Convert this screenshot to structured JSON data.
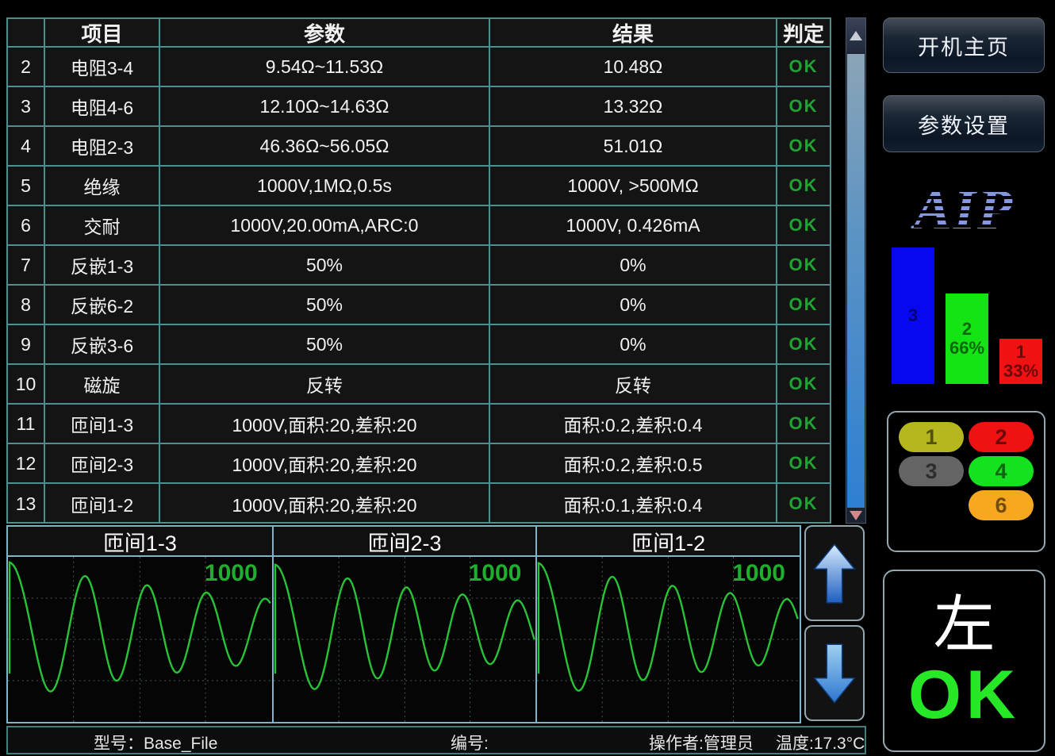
{
  "table": {
    "headers": {
      "no": "",
      "item": "项目",
      "param": "参数",
      "result": "结果",
      "judge": "判定"
    },
    "rows": [
      {
        "no": "2",
        "item": "电阻3-4",
        "param": "9.54Ω~11.53Ω",
        "result": "10.48Ω",
        "judge": "OK"
      },
      {
        "no": "3",
        "item": "电阻4-6",
        "param": "12.10Ω~14.63Ω",
        "result": "13.32Ω",
        "judge": "OK"
      },
      {
        "no": "4",
        "item": "电阻2-3",
        "param": "46.36Ω~56.05Ω",
        "result": "51.01Ω",
        "judge": "OK"
      },
      {
        "no": "5",
        "item": "绝缘",
        "param": "1000V,1MΩ,0.5s",
        "result": "1000V, >500MΩ",
        "judge": "OK"
      },
      {
        "no": "6",
        "item": "交耐",
        "param": "1000V,20.00mA,ARC:0",
        "result": "1000V, 0.426mA",
        "judge": "OK"
      },
      {
        "no": "7",
        "item": "反嵌1-3",
        "param": "50%",
        "result": "0%",
        "judge": "OK"
      },
      {
        "no": "8",
        "item": "反嵌6-2",
        "param": "50%",
        "result": "0%",
        "judge": "OK"
      },
      {
        "no": "9",
        "item": "反嵌3-6",
        "param": "50%",
        "result": "0%",
        "judge": "OK"
      },
      {
        "no": "10",
        "item": "磁旋",
        "param": "反转",
        "result": "反转",
        "judge": "OK"
      },
      {
        "no": "11",
        "item": "匝间1-3",
        "param": "1000V,面积:20,差积:20",
        "result": "面积:0.2,差积:0.4",
        "judge": "OK"
      },
      {
        "no": "12",
        "item": "匝间2-3",
        "param": "1000V,面积:20,差积:20",
        "result": "面积:0.2,差积:0.5",
        "judge": "OK"
      },
      {
        "no": "13",
        "item": "匝间1-2",
        "param": "1000V,面积:20,差积:20",
        "result": "面积:0.1,差积:0.4",
        "judge": "OK"
      }
    ]
  },
  "waveforms": {
    "panels": [
      {
        "title": "匝间1-3",
        "scale": "1000"
      },
      {
        "title": "匝间2-3",
        "scale": "1000"
      },
      {
        "title": "匝间1-2",
        "scale": "1000"
      }
    ]
  },
  "status_bar": {
    "model": "型号：Base_File",
    "serial": "编号:",
    "operator": "操作者:管理员",
    "temperature": "温度:17.3°C"
  },
  "sidebar": {
    "home_button": "开机主页",
    "settings_button": "参数设置",
    "logo_text": "AIP",
    "station_badges": [
      {
        "label": "1",
        "color": "#b6b61e",
        "row": 1,
        "col": 1
      },
      {
        "label": "2",
        "color": "#ef1212",
        "row": 1,
        "col": 2
      },
      {
        "label": "3",
        "color": "#646464",
        "row": 2,
        "col": 1
      },
      {
        "label": "4",
        "color": "#15e21e",
        "row": 2,
        "col": 2
      },
      {
        "label": "6",
        "color": "#f8a81e",
        "row": 3,
        "col": 2
      }
    ],
    "result_panel": {
      "position": "左",
      "status": "OK"
    }
  },
  "chart_data": {
    "type": "bar",
    "title": "",
    "categories": [
      "3",
      "2",
      "1"
    ],
    "values": [
      100,
      66,
      33
    ],
    "ylim": [
      0,
      100
    ],
    "bars": [
      {
        "label": "3",
        "percent_text": "",
        "color": "#0808f0",
        "height_pct": 100
      },
      {
        "label": "2",
        "percent_text": "66%",
        "color": "#14e414",
        "height_pct": 66
      },
      {
        "label": "1",
        "percent_text": "33%",
        "color": "#f01212",
        "height_pct": 33
      }
    ]
  },
  "icons": {
    "pager_up": "arrow-up-icon",
    "pager_down": "arrow-down-icon",
    "scrollbar_up": "triangle-up-icon",
    "scrollbar_down": "triangle-down-icon"
  },
  "colors": {
    "table_border": "#4f8e8e",
    "wave_border": "#7fb3c8",
    "ok_green": "#1da431",
    "wave_green": "#28c436",
    "logo_blue": "#8497e0",
    "scroll_thumb_blue": "#2f7fd2"
  }
}
